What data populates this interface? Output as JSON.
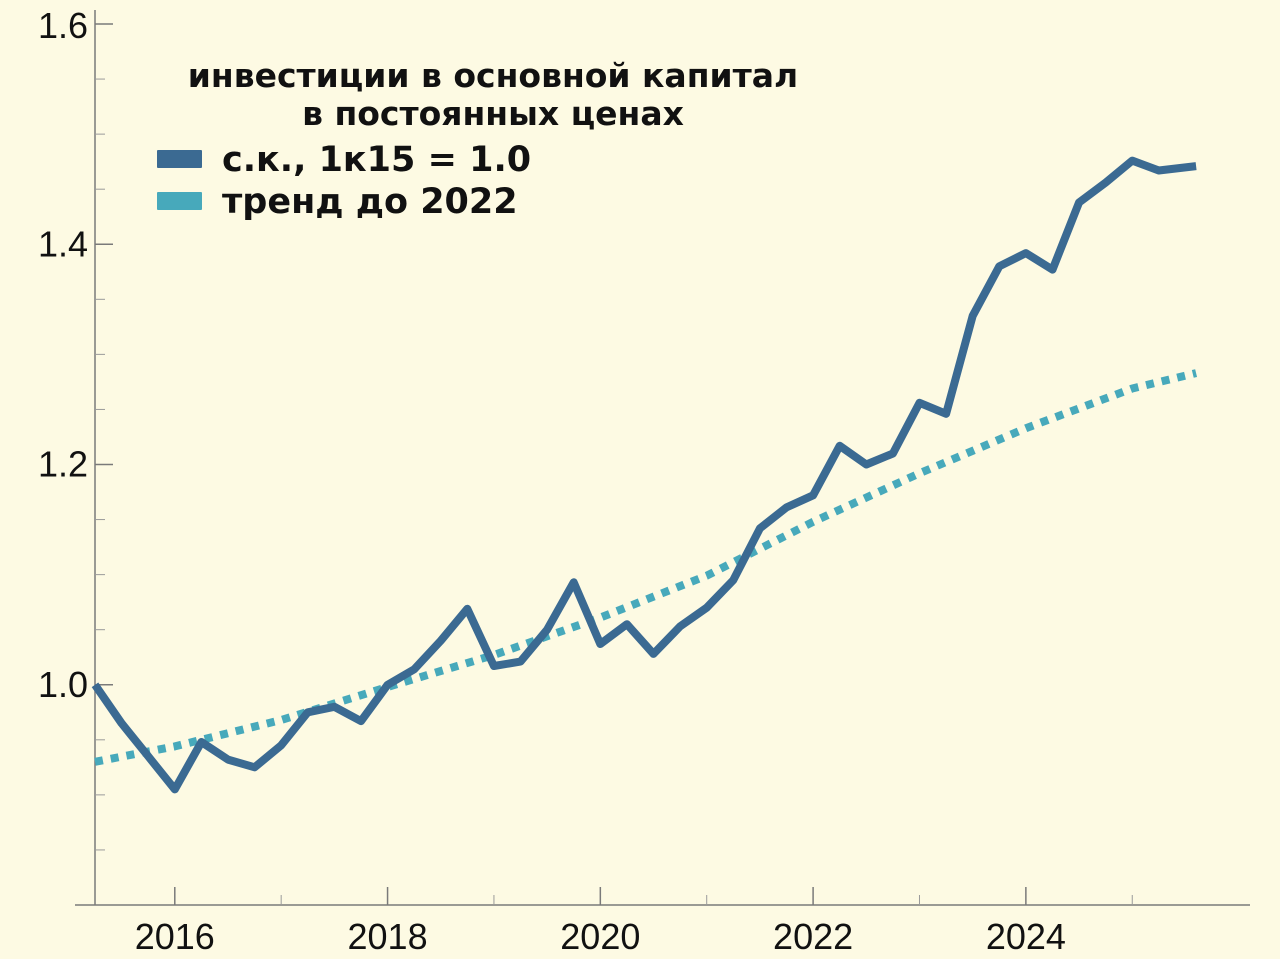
{
  "chart_data": {
    "type": "line",
    "title": "",
    "legend": {
      "title_lines": [
        "инвестиции в основной капитал",
        "в постоянных ценах"
      ],
      "placement": "top-left"
    },
    "x_axis": {
      "range": [
        2015.25,
        2025.9
      ],
      "ticks": [
        {
          "value": 2016,
          "label": "2016"
        },
        {
          "value": 2018,
          "label": "2018"
        },
        {
          "value": 2020,
          "label": "2020"
        },
        {
          "value": 2022,
          "label": "2022"
        },
        {
          "value": 2024,
          "label": "2024"
        }
      ],
      "minor_ticks": [
        2017,
        2019,
        2021,
        2023,
        2025
      ]
    },
    "y_axis": {
      "range": [
        0.8,
        1.6
      ],
      "ticks": [
        {
          "value": 1.0,
          "label": "1.0"
        },
        {
          "value": 1.2,
          "label": "1.2"
        },
        {
          "value": 1.4,
          "label": "1.4"
        },
        {
          "value": 1.6,
          "label": "1.6"
        }
      ],
      "minor_ticks": [
        0.85,
        0.9,
        0.95,
        1.05,
        1.1,
        1.15,
        1.25,
        1.3,
        1.35,
        1.45,
        1.5,
        1.55
      ]
    },
    "grid": false,
    "series": [
      {
        "name": "с.к., 1к15 = 1.0",
        "color": "#3b6a92",
        "style": "solid",
        "x": [
          2015.25,
          2015.5,
          2015.75,
          2016.0,
          2016.25,
          2016.5,
          2016.75,
          2017.0,
          2017.25,
          2017.5,
          2017.75,
          2018.0,
          2018.25,
          2018.5,
          2018.75,
          2019.0,
          2019.25,
          2019.5,
          2019.75,
          2020.0,
          2020.25,
          2020.5,
          2020.75,
          2021.0,
          2021.25,
          2021.5,
          2021.75,
          2022.0,
          2022.25,
          2022.5,
          2022.75,
          2023.0,
          2023.25,
          2023.5,
          2023.75,
          2024.0,
          2024.25,
          2024.5,
          2024.75,
          2025.0,
          2025.25,
          2025.6
        ],
        "values": [
          1.0,
          0.965,
          0.935,
          0.905,
          0.948,
          0.932,
          0.925,
          0.945,
          0.975,
          0.98,
          0.967,
          1.0,
          1.014,
          1.04,
          1.069,
          1.017,
          1.021,
          1.05,
          1.093,
          1.037,
          1.055,
          1.028,
          1.053,
          1.07,
          1.095,
          1.142,
          1.161,
          1.172,
          1.217,
          1.2,
          1.21,
          1.256,
          1.246,
          1.335,
          1.38,
          1.392,
          1.377,
          1.438,
          1.456,
          1.476,
          1.467,
          1.471
        ]
      },
      {
        "name": "тренд до 2022",
        "color": "#47a9bb",
        "style": "dotted",
        "x": [
          2015.25,
          2016.0,
          2017.0,
          2018.0,
          2019.0,
          2020.0,
          2021.0,
          2022.0,
          2023.0,
          2024.0,
          2025.0,
          2025.6
        ],
        "values": [
          0.93,
          0.944,
          0.968,
          0.998,
          1.027,
          1.061,
          1.099,
          1.148,
          1.192,
          1.233,
          1.269,
          1.283
        ]
      }
    ]
  }
}
